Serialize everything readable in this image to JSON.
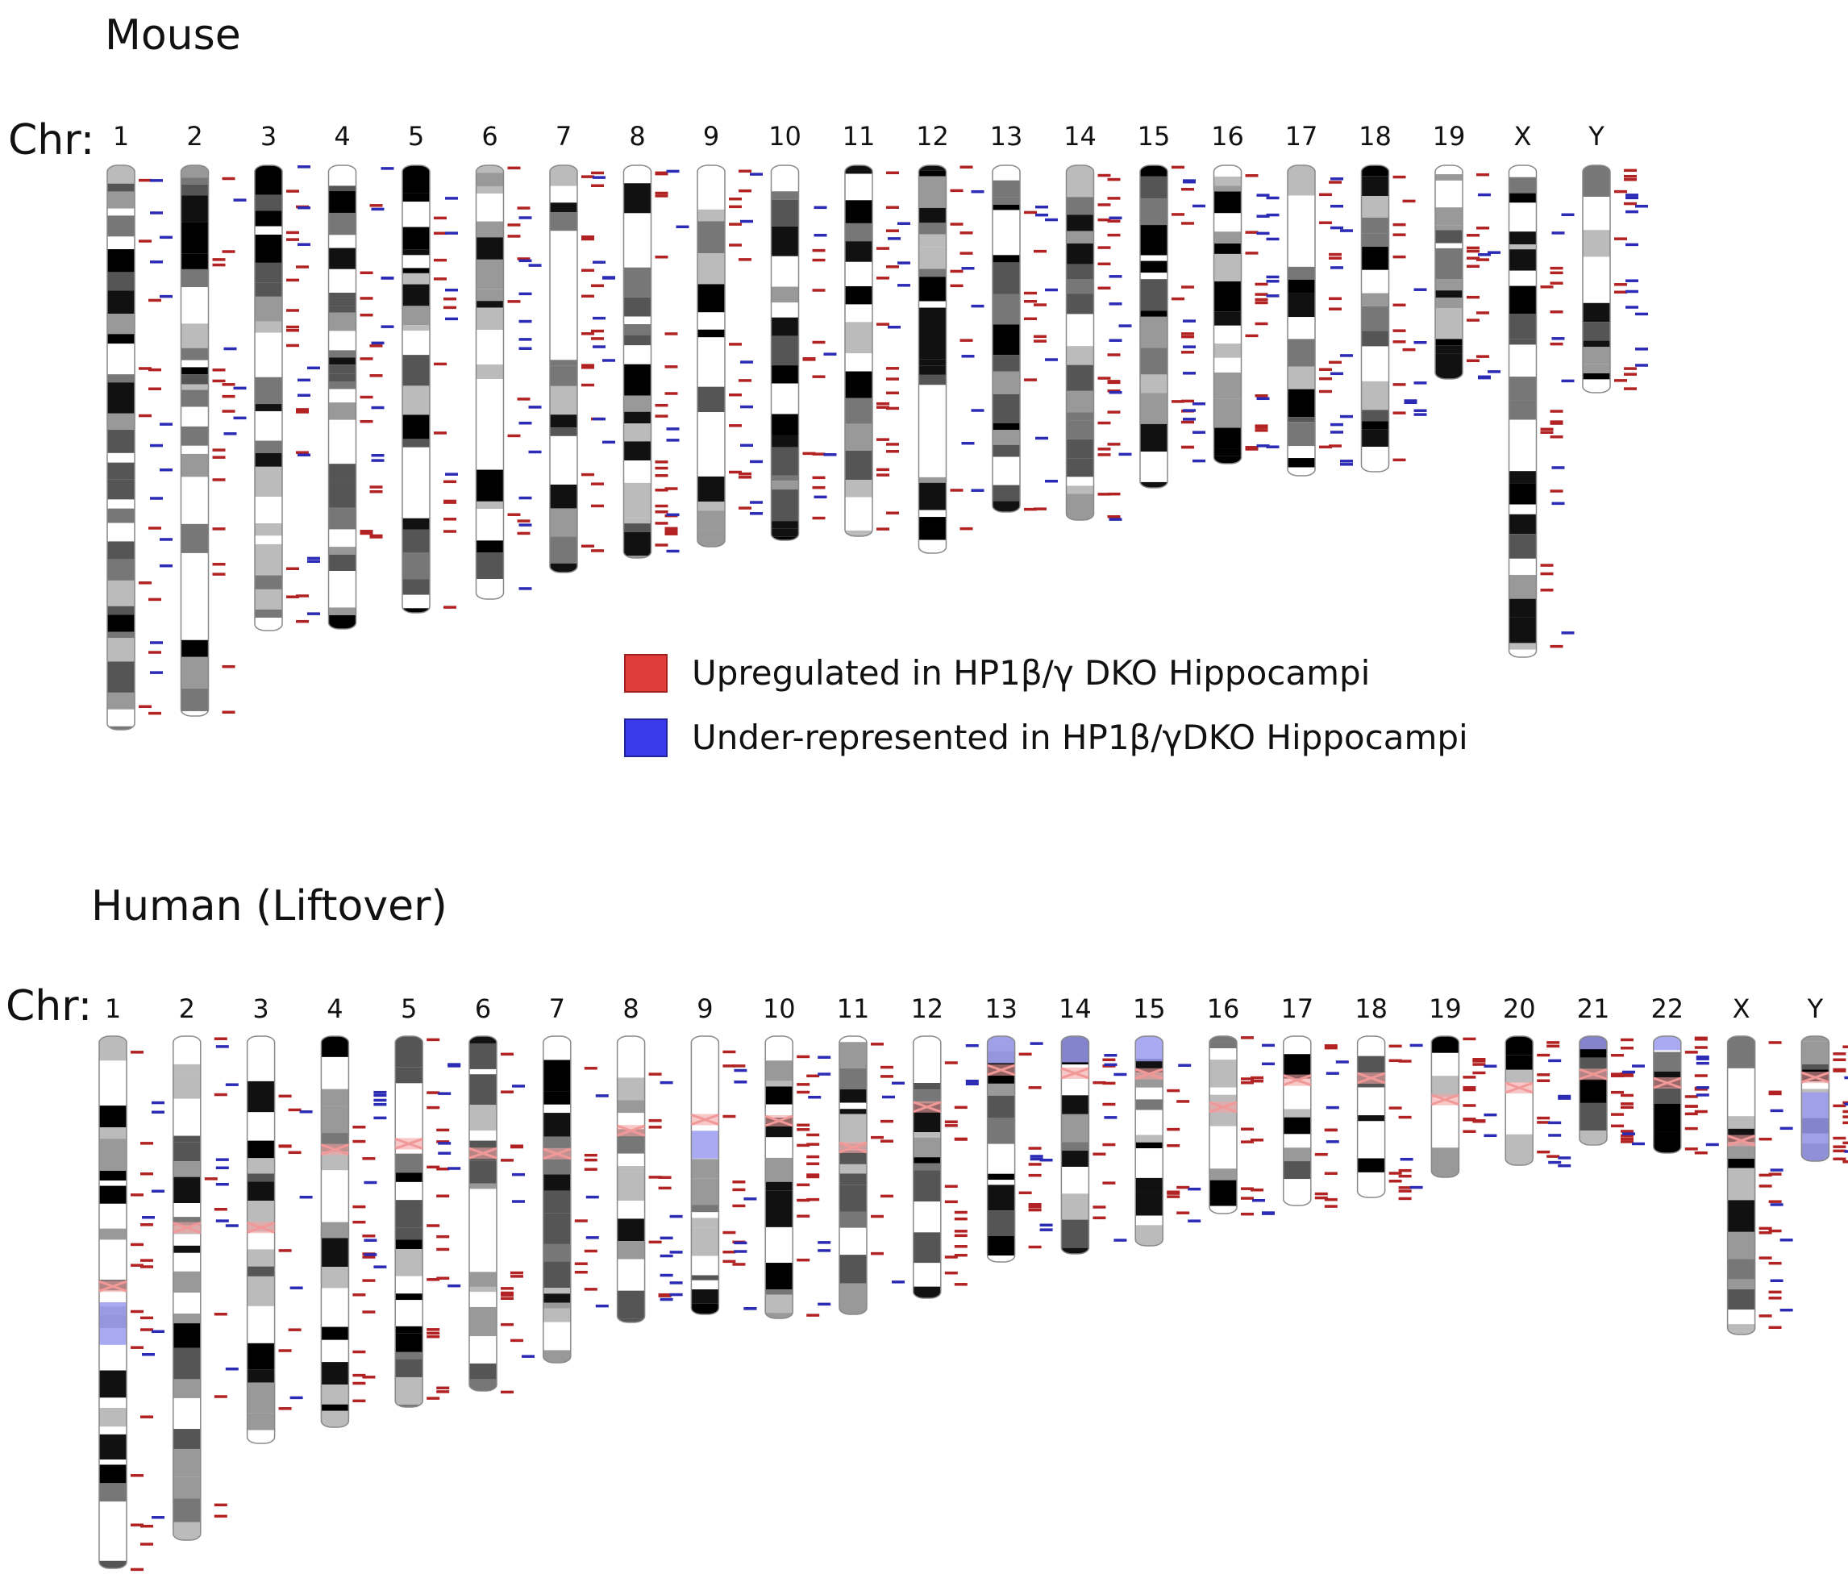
{
  "mouse": {
    "title": "Mouse",
    "chr_prefix": "Chr:",
    "chromosomes": [
      "1",
      "2",
      "3",
      "4",
      "5",
      "6",
      "7",
      "8",
      "9",
      "10",
      "11",
      "12",
      "13",
      "14",
      "15",
      "16",
      "17",
      "18",
      "19",
      "X",
      "Y"
    ]
  },
  "human": {
    "title": "Human (Liftover)",
    "chr_prefix": "Chr:",
    "chromosomes": [
      "1",
      "2",
      "3",
      "4",
      "5",
      "6",
      "7",
      "8",
      "9",
      "10",
      "11",
      "12",
      "13",
      "14",
      "15",
      "16",
      "17",
      "18",
      "19",
      "20",
      "21",
      "22",
      "X",
      "Y"
    ]
  },
  "legend": {
    "up_label": "Upregulated in HP1β/γ DKO Hippocampi",
    "down_label": "Under-represented in HP1β/γDKO Hippocampi",
    "up_color": "#e03c3c",
    "down_color": "#3a3ae8"
  },
  "colors": {
    "up_mark": "#b22222",
    "down_mark": "#2b2bb5",
    "centromere": "#f4a3a3",
    "heterochromatin": "#9b9bf0"
  }
}
